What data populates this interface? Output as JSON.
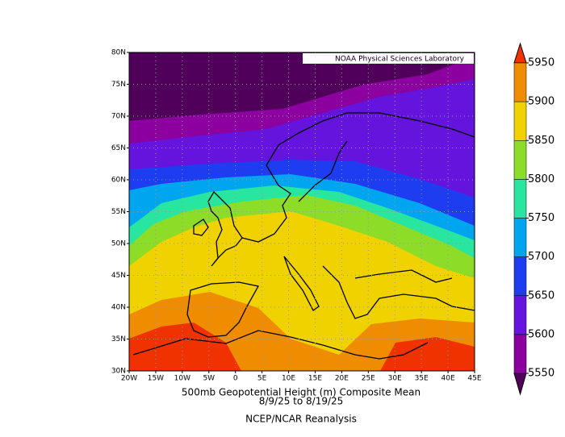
{
  "map": {
    "lat_ticks": [
      "30N",
      "35N",
      "40N",
      "45N",
      "50N",
      "55N",
      "60N",
      "65N",
      "70N",
      "75N",
      "80N"
    ],
    "lon_ticks": [
      "20W",
      "15W",
      "10W",
      "5W",
      "0",
      "5E",
      "10E",
      "15E",
      "20E",
      "25E",
      "30E",
      "35E",
      "40E",
      "45E"
    ],
    "badge": "NOAA Physical Sciences Laboratory"
  },
  "caption": {
    "title": "500mb Geopotential Height (m) Composite Mean",
    "dates": "8/9/25  to 8/19/25",
    "source": "NCEP/NCAR Reanalysis"
  },
  "colorbar": {
    "ticks": [
      5550,
      5600,
      5650,
      5700,
      5750,
      5800,
      5850,
      5900,
      5950
    ],
    "colors": [
      "#50005a",
      "#8c00a0",
      "#6414dc",
      "#1e3cf0",
      "#00a5f0",
      "#28e6a0",
      "#8cdc28",
      "#f0d200",
      "#f08c00",
      "#f03200"
    ]
  }
}
